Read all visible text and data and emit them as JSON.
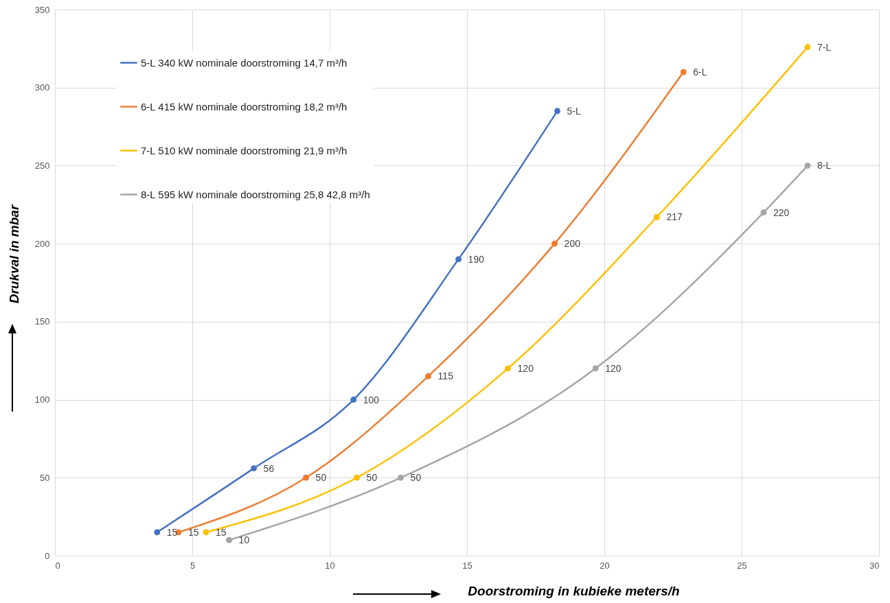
{
  "chart_data": {
    "type": "line",
    "xlabel": "Doorstroming in kubieke meters/h",
    "ylabel": "Drukval in mbar",
    "xlim": [
      0,
      30
    ],
    "xticks": [
      0,
      5,
      10,
      15,
      20,
      25,
      30
    ],
    "ylim": [
      0,
      350
    ],
    "yticks": [
      0,
      50,
      100,
      150,
      200,
      250,
      300,
      350
    ],
    "grid": true,
    "legend": "top left",
    "marker": "circle",
    "line_style": "solid",
    "annotations": [
      {
        "text": "5-L",
        "x": 18.29,
        "y": 285
      },
      {
        "text": "6-L",
        "x": 22.88,
        "y": 310
      },
      {
        "text": "7-L",
        "x": 27.4,
        "y": 326
      },
      {
        "text": "8-L",
        "x": 27.4,
        "y": 250
      }
    ],
    "series": [
      {
        "name": "5-L 340 kW nominale doorstroming 14,7 m³/h",
        "color": "#4472c4",
        "x": [
          3.72,
          7.24,
          10.87,
          14.69,
          18.29
        ],
        "values": [
          15,
          56,
          100,
          190,
          285
        ],
        "value_labels": [
          "15",
          "56",
          "100",
          "190",
          null
        ]
      },
      {
        "name": "6-L 415 kW nominale doorstroming 18,2 m³/h",
        "color": "#ed7d31",
        "x": [
          4.5,
          9.14,
          13.59,
          18.19,
          22.88
        ],
        "values": [
          15,
          50,
          115,
          200,
          310
        ],
        "value_labels": [
          "15",
          "50",
          "115",
          "200",
          null
        ]
      },
      {
        "name": "7-L 510 kW nominale doorstroming 21,9 m³/h",
        "color": "#ffc000",
        "x": [
          5.5,
          10.99,
          16.49,
          21.91,
          27.4
        ],
        "values": [
          15,
          50,
          120,
          217,
          326
        ],
        "value_labels": [
          "15",
          "50",
          "120",
          "217",
          null
        ]
      },
      {
        "name": "8-L 595 kW nominale doorstroming 25,8 42,8 m³/h",
        "color": "#a5a5a5",
        "x": [
          6.34,
          12.59,
          19.68,
          25.8,
          27.4
        ],
        "values": [
          10,
          50,
          120,
          220,
          250
        ],
        "value_labels": [
          "10",
          "50",
          "120",
          "220",
          null
        ]
      }
    ]
  }
}
